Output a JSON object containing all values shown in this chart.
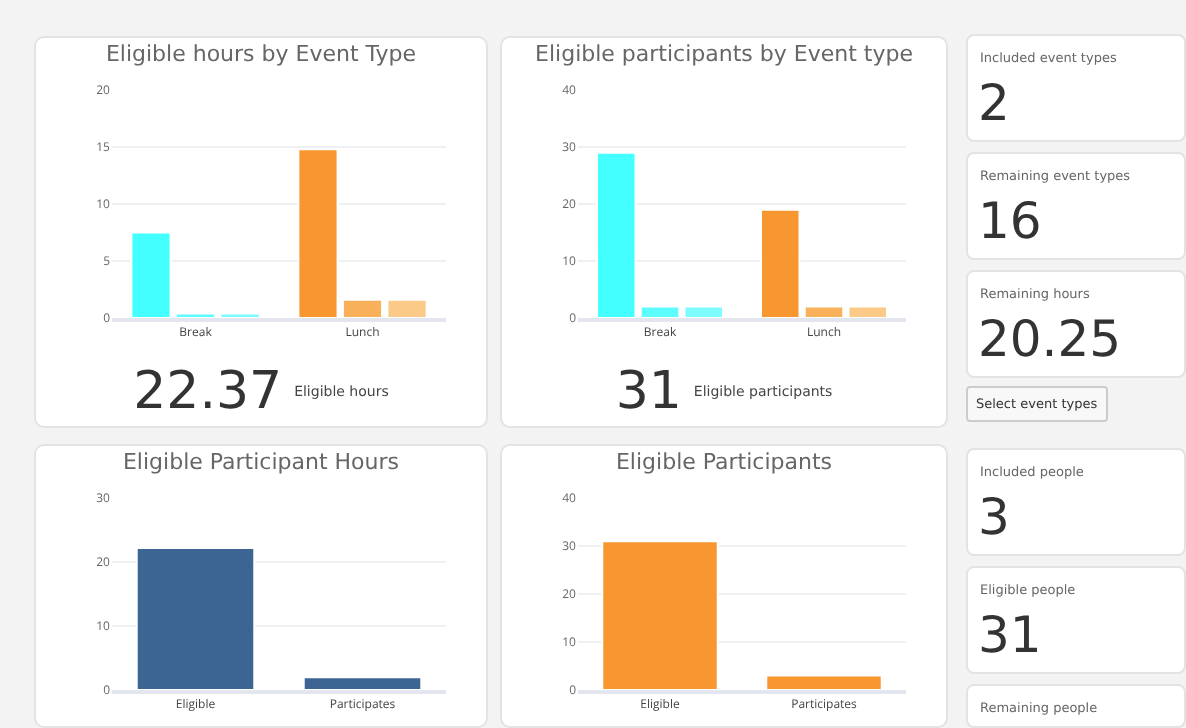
{
  "chart_data": [
    {
      "type": "bar",
      "title": "Eligible hours by Event Type",
      "categories": [
        "Break",
        "Lunch"
      ],
      "series": [
        {
          "values": [
            7.5,
            14.8
          ],
          "colors": [
            "#44ffff",
            "#f8962f"
          ]
        },
        {
          "values": [
            0.4,
            1.6
          ],
          "colors": [
            "#5cfdff",
            "#f9b05a"
          ]
        },
        {
          "values": [
            0.4,
            1.6
          ],
          "colors": [
            "#7dfcff",
            "#fbca88"
          ]
        }
      ],
      "ylim": [
        0,
        20
      ],
      "yticks": [
        0,
        5,
        10,
        15,
        20
      ],
      "grid": "y",
      "annotations": [
        "22.37",
        "Eligible hours"
      ]
    },
    {
      "type": "bar",
      "title": "Eligible participants by Event type",
      "categories": [
        "Break",
        "Lunch"
      ],
      "series": [
        {
          "values": [
            29,
            19
          ],
          "colors": [
            "#44ffff",
            "#f8962f"
          ]
        },
        {
          "values": [
            2,
            2
          ],
          "colors": [
            "#5cfdff",
            "#f9b05a"
          ]
        },
        {
          "values": [
            2,
            2
          ],
          "colors": [
            "#7dfcff",
            "#fbca88"
          ]
        }
      ],
      "ylim": [
        0,
        40
      ],
      "yticks": [
        0,
        10,
        20,
        30,
        40
      ],
      "grid": "y",
      "annotations": [
        "31",
        "Eligible participants"
      ]
    },
    {
      "type": "bar",
      "title": "Eligible Participant Hours",
      "categories": [
        "Eligible",
        "Participates"
      ],
      "series": [
        {
          "values": [
            22.2,
            2
          ],
          "color": "#3d6594"
        }
      ],
      "ylim": [
        0,
        30
      ],
      "yticks": [
        0,
        10,
        20,
        30
      ],
      "grid": "y"
    },
    {
      "type": "bar",
      "title": "Eligible Participants",
      "categories": [
        "Eligible",
        "Participates"
      ],
      "series": [
        {
          "values": [
            31,
            3
          ],
          "color": "#f8962f"
        }
      ],
      "ylim": [
        0,
        40
      ],
      "yticks": [
        0,
        10,
        20,
        30,
        40
      ],
      "grid": "y"
    },
    {
      "type": "other",
      "annotations": [
        "Included event types",
        "2",
        "Remaining event types",
        "16",
        "Remaining hours",
        "20.25",
        "Select event types",
        "Included people",
        "3",
        "Eligible people",
        "31",
        "Remaining people"
      ]
    }
  ]
}
